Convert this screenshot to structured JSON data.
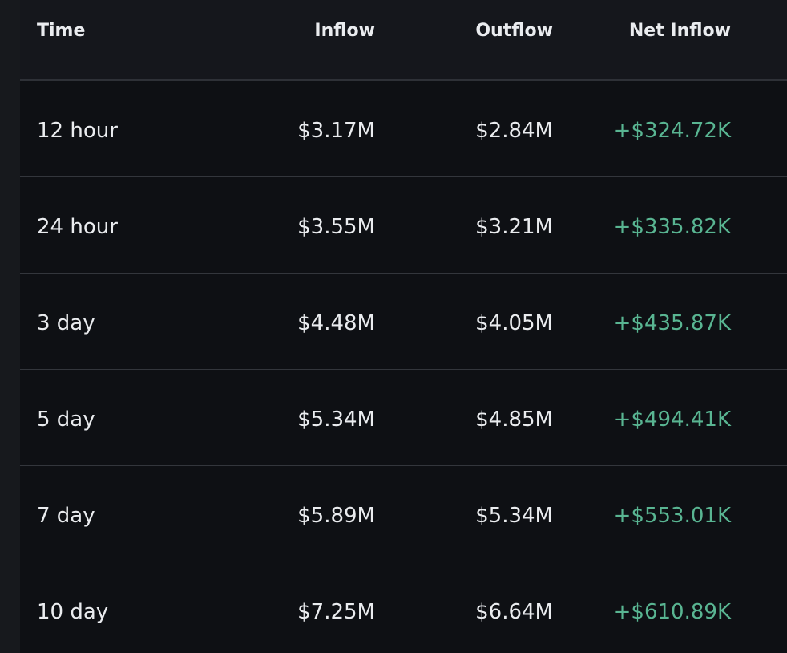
{
  "table": {
    "headers": {
      "time": "Time",
      "inflow": "Inflow",
      "outflow": "Outflow",
      "net_inflow": "Net Inflow"
    },
    "rows": [
      {
        "time": "12 hour",
        "inflow": "$3.17M",
        "outflow": "$2.84M",
        "net_inflow": "+$324.72K"
      },
      {
        "time": "24 hour",
        "inflow": "$3.55M",
        "outflow": "$3.21M",
        "net_inflow": "+$335.82K"
      },
      {
        "time": "3 day",
        "inflow": "$4.48M",
        "outflow": "$4.05M",
        "net_inflow": "+$435.87K"
      },
      {
        "time": "5 day",
        "inflow": "$5.34M",
        "outflow": "$4.85M",
        "net_inflow": "+$494.41K"
      },
      {
        "time": "7 day",
        "inflow": "$5.89M",
        "outflow": "$5.34M",
        "net_inflow": "+$553.01K"
      },
      {
        "time": "10 day",
        "inflow": "$7.25M",
        "outflow": "$6.64M",
        "net_inflow": "+$610.89K"
      }
    ]
  },
  "colors": {
    "background": "#0e1014",
    "header_background": "#15171c",
    "text": "#eaecef",
    "positive": "#59b592",
    "divider": "#33363c"
  }
}
